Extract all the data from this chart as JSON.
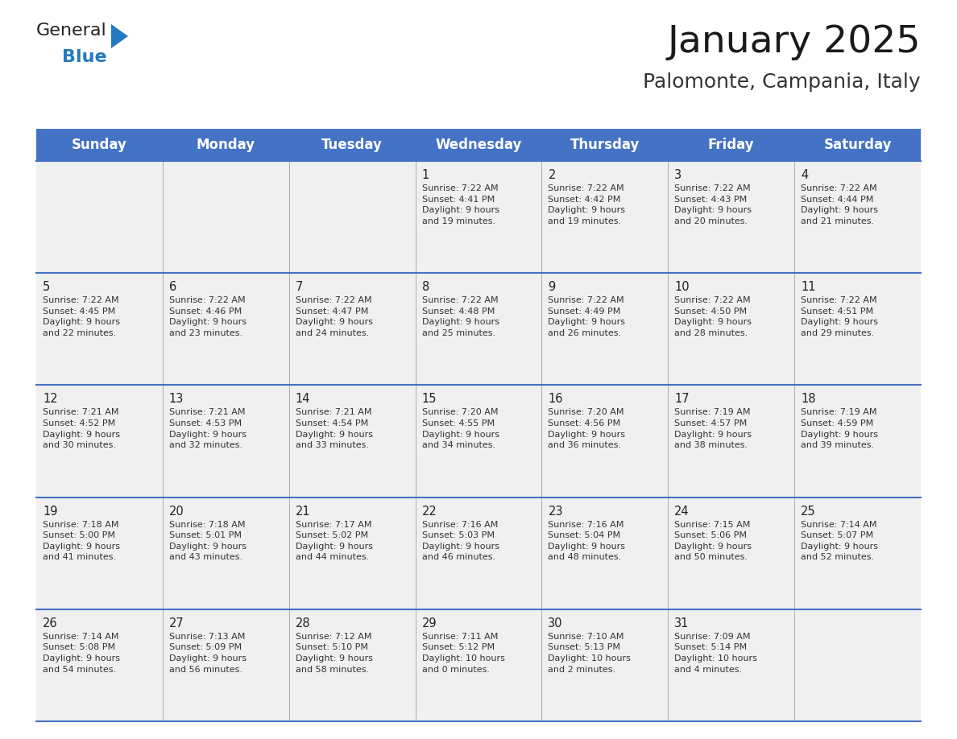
{
  "title": "January 2025",
  "subtitle": "Palomonte, Campania, Italy",
  "header_bg": "#4472C4",
  "header_text_color": "#FFFFFF",
  "cell_bg_light": "#F0F0F0",
  "border_color": "#4472C4",
  "separator_color": "#AAAAAA",
  "days_of_week": [
    "Sunday",
    "Monday",
    "Tuesday",
    "Wednesday",
    "Thursday",
    "Friday",
    "Saturday"
  ],
  "weeks": [
    [
      {
        "day": "",
        "text": ""
      },
      {
        "day": "",
        "text": ""
      },
      {
        "day": "",
        "text": ""
      },
      {
        "day": "1",
        "text": "Sunrise: 7:22 AM\nSunset: 4:41 PM\nDaylight: 9 hours\nand 19 minutes."
      },
      {
        "day": "2",
        "text": "Sunrise: 7:22 AM\nSunset: 4:42 PM\nDaylight: 9 hours\nand 19 minutes."
      },
      {
        "day": "3",
        "text": "Sunrise: 7:22 AM\nSunset: 4:43 PM\nDaylight: 9 hours\nand 20 minutes."
      },
      {
        "day": "4",
        "text": "Sunrise: 7:22 AM\nSunset: 4:44 PM\nDaylight: 9 hours\nand 21 minutes."
      }
    ],
    [
      {
        "day": "5",
        "text": "Sunrise: 7:22 AM\nSunset: 4:45 PM\nDaylight: 9 hours\nand 22 minutes."
      },
      {
        "day": "6",
        "text": "Sunrise: 7:22 AM\nSunset: 4:46 PM\nDaylight: 9 hours\nand 23 minutes."
      },
      {
        "day": "7",
        "text": "Sunrise: 7:22 AM\nSunset: 4:47 PM\nDaylight: 9 hours\nand 24 minutes."
      },
      {
        "day": "8",
        "text": "Sunrise: 7:22 AM\nSunset: 4:48 PM\nDaylight: 9 hours\nand 25 minutes."
      },
      {
        "day": "9",
        "text": "Sunrise: 7:22 AM\nSunset: 4:49 PM\nDaylight: 9 hours\nand 26 minutes."
      },
      {
        "day": "10",
        "text": "Sunrise: 7:22 AM\nSunset: 4:50 PM\nDaylight: 9 hours\nand 28 minutes."
      },
      {
        "day": "11",
        "text": "Sunrise: 7:22 AM\nSunset: 4:51 PM\nDaylight: 9 hours\nand 29 minutes."
      }
    ],
    [
      {
        "day": "12",
        "text": "Sunrise: 7:21 AM\nSunset: 4:52 PM\nDaylight: 9 hours\nand 30 minutes."
      },
      {
        "day": "13",
        "text": "Sunrise: 7:21 AM\nSunset: 4:53 PM\nDaylight: 9 hours\nand 32 minutes."
      },
      {
        "day": "14",
        "text": "Sunrise: 7:21 AM\nSunset: 4:54 PM\nDaylight: 9 hours\nand 33 minutes."
      },
      {
        "day": "15",
        "text": "Sunrise: 7:20 AM\nSunset: 4:55 PM\nDaylight: 9 hours\nand 34 minutes."
      },
      {
        "day": "16",
        "text": "Sunrise: 7:20 AM\nSunset: 4:56 PM\nDaylight: 9 hours\nand 36 minutes."
      },
      {
        "day": "17",
        "text": "Sunrise: 7:19 AM\nSunset: 4:57 PM\nDaylight: 9 hours\nand 38 minutes."
      },
      {
        "day": "18",
        "text": "Sunrise: 7:19 AM\nSunset: 4:59 PM\nDaylight: 9 hours\nand 39 minutes."
      }
    ],
    [
      {
        "day": "19",
        "text": "Sunrise: 7:18 AM\nSunset: 5:00 PM\nDaylight: 9 hours\nand 41 minutes."
      },
      {
        "day": "20",
        "text": "Sunrise: 7:18 AM\nSunset: 5:01 PM\nDaylight: 9 hours\nand 43 minutes."
      },
      {
        "day": "21",
        "text": "Sunrise: 7:17 AM\nSunset: 5:02 PM\nDaylight: 9 hours\nand 44 minutes."
      },
      {
        "day": "22",
        "text": "Sunrise: 7:16 AM\nSunset: 5:03 PM\nDaylight: 9 hours\nand 46 minutes."
      },
      {
        "day": "23",
        "text": "Sunrise: 7:16 AM\nSunset: 5:04 PM\nDaylight: 9 hours\nand 48 minutes."
      },
      {
        "day": "24",
        "text": "Sunrise: 7:15 AM\nSunset: 5:06 PM\nDaylight: 9 hours\nand 50 minutes."
      },
      {
        "day": "25",
        "text": "Sunrise: 7:14 AM\nSunset: 5:07 PM\nDaylight: 9 hours\nand 52 minutes."
      }
    ],
    [
      {
        "day": "26",
        "text": "Sunrise: 7:14 AM\nSunset: 5:08 PM\nDaylight: 9 hours\nand 54 minutes."
      },
      {
        "day": "27",
        "text": "Sunrise: 7:13 AM\nSunset: 5:09 PM\nDaylight: 9 hours\nand 56 minutes."
      },
      {
        "day": "28",
        "text": "Sunrise: 7:12 AM\nSunset: 5:10 PM\nDaylight: 9 hours\nand 58 minutes."
      },
      {
        "day": "29",
        "text": "Sunrise: 7:11 AM\nSunset: 5:12 PM\nDaylight: 10 hours\nand 0 minutes."
      },
      {
        "day": "30",
        "text": "Sunrise: 7:10 AM\nSunset: 5:13 PM\nDaylight: 10 hours\nand 2 minutes."
      },
      {
        "day": "31",
        "text": "Sunrise: 7:09 AM\nSunset: 5:14 PM\nDaylight: 10 hours\nand 4 minutes."
      },
      {
        "day": "",
        "text": ""
      }
    ]
  ],
  "logo_general_color": "#222222",
  "logo_blue_color": "#2479C2",
  "title_fontsize": 34,
  "subtitle_fontsize": 18,
  "header_fontsize": 12,
  "day_num_fontsize": 10.5,
  "cell_text_fontsize": 8.0
}
